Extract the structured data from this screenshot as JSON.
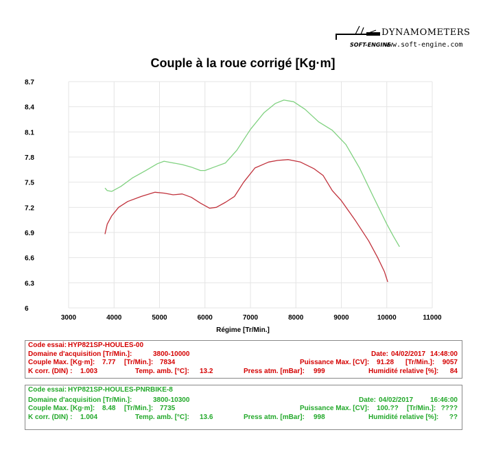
{
  "logo": {
    "brand": "DYNAMOMETERS",
    "maker": "SOFT-ENGINE",
    "url": "www.soft-engine.com"
  },
  "chart_data": {
    "type": "line",
    "title": "Couple à la roue corrigé [Kg·m]",
    "xlabel": "Régime [Tr/Min.]",
    "ylabel": "",
    "xlim": [
      3000,
      11000
    ],
    "ylim": [
      6,
      8.7
    ],
    "x_ticks": [
      "3000",
      "4000",
      "5000",
      "6000",
      "7000",
      "8000",
      "9000",
      "10000",
      "11000"
    ],
    "y_ticks": [
      "6",
      "6.3",
      "6.6",
      "6.9",
      "7.2",
      "7.5",
      "7.8",
      "8.1",
      "8.4",
      "8.7"
    ],
    "grid": true,
    "series": [
      {
        "color": "#c0303a",
        "points": [
          [
            3800,
            6.88
          ],
          [
            3850,
            7.0
          ],
          [
            3950,
            7.1
          ],
          [
            4100,
            7.2
          ],
          [
            4300,
            7.27
          ],
          [
            4600,
            7.33
          ],
          [
            4900,
            7.38
          ],
          [
            5100,
            7.37
          ],
          [
            5300,
            7.35
          ],
          [
            5500,
            7.36
          ],
          [
            5700,
            7.32
          ],
          [
            5900,
            7.25
          ],
          [
            6100,
            7.19
          ],
          [
            6250,
            7.2
          ],
          [
            6450,
            7.26
          ],
          [
            6650,
            7.33
          ],
          [
            6850,
            7.5
          ],
          [
            7100,
            7.67
          ],
          [
            7400,
            7.74
          ],
          [
            7600,
            7.76
          ],
          [
            7834,
            7.77
          ],
          [
            8100,
            7.74
          ],
          [
            8400,
            7.66
          ],
          [
            8600,
            7.58
          ],
          [
            8800,
            7.4
          ],
          [
            9000,
            7.28
          ],
          [
            9300,
            7.05
          ],
          [
            9600,
            6.8
          ],
          [
            9800,
            6.6
          ],
          [
            9950,
            6.43
          ],
          [
            10020,
            6.31
          ]
        ]
      },
      {
        "color": "#7fd17f",
        "points": [
          [
            3800,
            7.43
          ],
          [
            3850,
            7.4
          ],
          [
            3950,
            7.39
          ],
          [
            4150,
            7.45
          ],
          [
            4400,
            7.55
          ],
          [
            4700,
            7.64
          ],
          [
            4950,
            7.72
          ],
          [
            5100,
            7.75
          ],
          [
            5300,
            7.73
          ],
          [
            5500,
            7.71
          ],
          [
            5700,
            7.68
          ],
          [
            5900,
            7.64
          ],
          [
            6000,
            7.64
          ],
          [
            6200,
            7.68
          ],
          [
            6450,
            7.73
          ],
          [
            6700,
            7.88
          ],
          [
            7000,
            8.13
          ],
          [
            7300,
            8.33
          ],
          [
            7550,
            8.44
          ],
          [
            7735,
            8.48
          ],
          [
            7950,
            8.46
          ],
          [
            8200,
            8.37
          ],
          [
            8500,
            8.22
          ],
          [
            8800,
            8.12
          ],
          [
            9100,
            7.95
          ],
          [
            9400,
            7.67
          ],
          [
            9700,
            7.33
          ],
          [
            10000,
            7.0
          ],
          [
            10150,
            6.85
          ],
          [
            10280,
            6.73
          ]
        ]
      }
    ]
  },
  "runs": [
    {
      "code_label": "Code essai:",
      "code": "HYP821SP-HOULES-00",
      "domain_label": "Domaine d'acquisition [Tr/Min.]:",
      "domain": "3800-10000",
      "date_label": "Date:",
      "date": "04/02/2017",
      "time": "14:48:00",
      "torque_label": "Couple Max. [Kg·m]:",
      "torque": "7.77",
      "torque_rpm_label": "[Tr/Min.]:",
      "torque_rpm": "7834",
      "power_label": "Puissance Max. [CV]:",
      "power": "91.28",
      "power_rpm_label": "[Tr/Min.]:",
      "power_rpm": "9057",
      "kcorr_label": "K corr. (DIN) :",
      "kcorr": "1.003",
      "temp_label": "Temp. amb. [°C]:",
      "temp": "13.2",
      "press_label": "Press atm. [mBar]:",
      "press": "999",
      "hum_label": "Humidité relative [%]:",
      "hum": "84"
    },
    {
      "code_label": "Code essai:",
      "code": "HYP821SP-HOULES-PNRBIKE-8",
      "domain_label": "Domaine d'acquisition [Tr/Min.]:",
      "domain": "3800-10300",
      "date_label": "Date:",
      "date": "04/02/2017",
      "time": "16:46:00",
      "torque_label": "Couple Max. [Kg·m]:",
      "torque": "8.48",
      "torque_rpm_label": "[Tr/Min.]:",
      "torque_rpm": "7735",
      "power_label": "Puissance Max. [CV]:",
      "power": "100.??",
      "power_rpm_label": "[Tr/Min.]:",
      "power_rpm": "????",
      "kcorr_label": "K corr. (DIN) :",
      "kcorr": "1.004",
      "temp_label": "Temp. amb. [°C]:",
      "temp": "13.6",
      "press_label": "Press atm. [mBar]:",
      "press": "998",
      "hum_label": "Humidité relative [%]:",
      "hum": "??"
    }
  ]
}
